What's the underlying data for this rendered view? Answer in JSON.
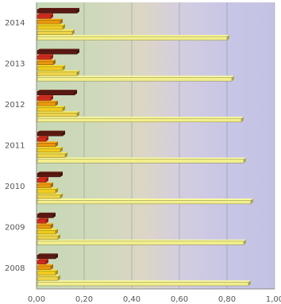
{
  "chart_data": {
    "type": "bar",
    "orientation": "horizontal",
    "categories": [
      "2008",
      "2009",
      "2010",
      "2011",
      "2012",
      "2013",
      "2014"
    ],
    "series": [
      {
        "color": "#f2ee8c",
        "values": [
          0.89,
          0.87,
          0.9,
          0.87,
          0.86,
          0.82,
          0.8
        ]
      },
      {
        "color": "#ecd34a",
        "values": [
          0.09,
          0.09,
          0.1,
          0.12,
          0.17,
          0.17,
          0.15
        ]
      },
      {
        "color": "#f0cc20",
        "values": [
          0.08,
          0.08,
          0.08,
          0.1,
          0.11,
          0.11,
          0.11
        ]
      },
      {
        "color": "#e8960f",
        "values": [
          0.06,
          0.06,
          0.06,
          0.08,
          0.08,
          0.07,
          0.1
        ]
      },
      {
        "color": "#d02c1c",
        "values": [
          0.04,
          0.04,
          0.04,
          0.04,
          0.06,
          0.06,
          0.06
        ]
      },
      {
        "color": "#5a1a12",
        "values": [
          0.08,
          0.07,
          0.1,
          0.11,
          0.16,
          0.17,
          0.17
        ]
      }
    ],
    "xlim": [
      0,
      1.0
    ],
    "xticks": [
      "0,00",
      "0,20",
      "0,40",
      "0,60",
      "0,80",
      "1,00"
    ],
    "grid": true,
    "legend": "none"
  }
}
